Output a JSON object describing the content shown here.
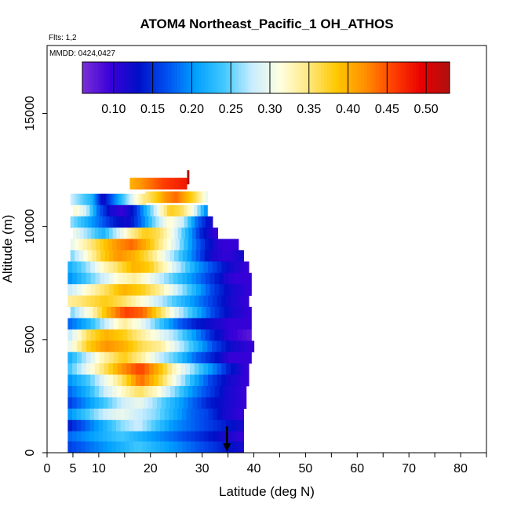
{
  "chart_data": {
    "type": "heatmap",
    "title": "ATOM4 Northeast_Pacific_1 OH_ATHOS",
    "subtitle_flights": "Flts: 1,2",
    "subtitle_dates": "MMDD: 0424,0427",
    "xlabel": "Latitude (deg N)",
    "ylabel": "Altitude (m)",
    "xlim": [
      0,
      85
    ],
    "ylim": [
      0,
      18000
    ],
    "x_ticks": [
      0,
      5,
      10,
      20,
      30,
      40,
      50,
      60,
      70,
      80
    ],
    "x_minor_ticks": [
      15,
      25,
      35,
      45,
      55,
      65,
      75,
      85
    ],
    "y_ticks": [
      0,
      5000,
      10000,
      15000
    ],
    "colorbar": {
      "min": 0.06,
      "max": 0.53,
      "ticks": [
        0.1,
        0.15,
        0.2,
        0.25,
        0.3,
        0.35,
        0.4,
        0.45,
        0.5
      ],
      "tick_labels": [
        "0.10",
        "0.15",
        "0.20",
        "0.25",
        "0.30",
        "0.35",
        "0.40",
        "0.45",
        "0.50"
      ],
      "colors": [
        "#7b2fd8",
        "#3a00d8",
        "#0010c8",
        "#0050f0",
        "#00a0ff",
        "#40c8ff",
        "#c8ecff",
        "#ffffe0",
        "#ffe880",
        "#ffc800",
        "#ff9000",
        "#ff4000",
        "#e80000",
        "#b01010"
      ]
    },
    "layers": [
      {
        "alt": 11200,
        "x0": 4.5,
        "x1": 19,
        "pattern": [
          0.28,
          0.25,
          0.22,
          0.12,
          0.18,
          0.24,
          0.3,
          0.35
        ]
      },
      {
        "alt": 11900,
        "x0": 16,
        "x1": 27,
        "pattern": [
          0.4,
          0.42,
          0.44,
          0.46,
          0.47,
          0.48
        ]
      },
      {
        "alt": 11300,
        "x0": 19,
        "x1": 31,
        "pattern": [
          0.35,
          0.38,
          0.42,
          0.44,
          0.4,
          0.36,
          0.3
        ]
      },
      {
        "alt": 10700,
        "x0": 5,
        "x1": 31,
        "pattern": [
          0.32,
          0.28,
          0.18,
          0.12,
          0.1,
          0.14,
          0.22,
          0.3,
          0.38,
          0.36,
          0.3,
          0.2
        ]
      },
      {
        "alt": 10200,
        "x0": 4.5,
        "x1": 32,
        "pattern": [
          0.26,
          0.22,
          0.18,
          0.14,
          0.12,
          0.18,
          0.26,
          0.32,
          0.28,
          0.18,
          0.12
        ]
      },
      {
        "alt": 9700,
        "x0": 5,
        "x1": 33,
        "pattern": [
          0.3,
          0.26,
          0.22,
          0.28,
          0.34,
          0.38,
          0.36,
          0.3,
          0.22,
          0.14,
          0.1
        ]
      },
      {
        "alt": 9200,
        "x0": 4.5,
        "x1": 37,
        "pattern": [
          0.3,
          0.34,
          0.38,
          0.42,
          0.44,
          0.4,
          0.34,
          0.28,
          0.2,
          0.14,
          0.1,
          0.1
        ]
      },
      {
        "alt": 8700,
        "x0": 4.5,
        "x1": 38,
        "pattern": [
          0.26,
          0.32,
          0.38,
          0.42,
          0.4,
          0.36,
          0.3,
          0.24,
          0.18,
          0.12,
          0.1,
          0.12
        ]
      },
      {
        "alt": 8200,
        "x0": 4,
        "x1": 39,
        "pattern": [
          0.22,
          0.26,
          0.32,
          0.36,
          0.4,
          0.38,
          0.32,
          0.26,
          0.2,
          0.16,
          0.12,
          0.1
        ]
      },
      {
        "alt": 7700,
        "x0": 4,
        "x1": 39.5,
        "pattern": [
          0.2,
          0.24,
          0.28,
          0.32,
          0.34,
          0.3,
          0.26,
          0.22,
          0.18,
          0.14,
          0.1,
          0.1
        ]
      },
      {
        "alt": 7200,
        "x0": 4,
        "x1": 39.5,
        "pattern": [
          0.28,
          0.32,
          0.36,
          0.4,
          0.38,
          0.34,
          0.28,
          0.22,
          0.16,
          0.12,
          0.1
        ]
      },
      {
        "alt": 6700,
        "x0": 4,
        "x1": 39,
        "pattern": [
          0.34,
          0.36,
          0.38,
          0.36,
          0.32,
          0.28,
          0.24,
          0.2,
          0.16,
          0.12,
          0.1
        ]
      },
      {
        "alt": 6200,
        "x0": 4.5,
        "x1": 39.5,
        "pattern": [
          0.26,
          0.32,
          0.4,
          0.46,
          0.44,
          0.36,
          0.28,
          0.22,
          0.16,
          0.12,
          0.1
        ]
      },
      {
        "alt": 5700,
        "x0": 4,
        "x1": 39.5,
        "pattern": [
          0.18,
          0.22,
          0.28,
          0.34,
          0.3,
          0.24,
          0.18,
          0.14,
          0.12,
          0.1,
          0.1
        ]
      },
      {
        "alt": 5200,
        "x0": 4,
        "x1": 39.5,
        "pattern": [
          0.28,
          0.36,
          0.4,
          0.38,
          0.34,
          0.3,
          0.26,
          0.2,
          0.14,
          0.1,
          0.08
        ]
      },
      {
        "alt": 4700,
        "x0": 4,
        "x1": 40,
        "pattern": [
          0.3,
          0.38,
          0.42,
          0.4,
          0.36,
          0.34,
          0.28,
          0.22,
          0.16,
          0.12,
          0.1
        ]
      },
      {
        "alt": 4200,
        "x0": 4,
        "x1": 39.5,
        "pattern": [
          0.22,
          0.28,
          0.34,
          0.38,
          0.34,
          0.28,
          0.24,
          0.18,
          0.14,
          0.1,
          0.1
        ]
      },
      {
        "alt": 3700,
        "x0": 4,
        "x1": 39,
        "pattern": [
          0.24,
          0.3,
          0.36,
          0.42,
          0.46,
          0.4,
          0.32,
          0.26,
          0.2,
          0.14,
          0.1
        ]
      },
      {
        "alt": 3200,
        "x0": 4,
        "x1": 39,
        "pattern": [
          0.2,
          0.24,
          0.3,
          0.36,
          0.44,
          0.38,
          0.3,
          0.22,
          0.16,
          0.12,
          0.1
        ]
      },
      {
        "alt": 2700,
        "x0": 4,
        "x1": 38.5,
        "pattern": [
          0.18,
          0.22,
          0.28,
          0.32,
          0.36,
          0.32,
          0.26,
          0.2,
          0.16,
          0.12,
          0.1
        ]
      },
      {
        "alt": 2200,
        "x0": 4,
        "x1": 38.5,
        "pattern": [
          0.16,
          0.2,
          0.24,
          0.28,
          0.3,
          0.26,
          0.22,
          0.18,
          0.14,
          0.12,
          0.1
        ]
      },
      {
        "alt": 1700,
        "x0": 4,
        "x1": 38,
        "pattern": [
          0.2,
          0.24,
          0.28,
          0.3,
          0.28,
          0.26,
          0.22,
          0.18,
          0.16,
          0.12,
          0.1
        ]
      },
      {
        "alt": 1200,
        "x0": 4,
        "x1": 38,
        "pattern": [
          0.14,
          0.18,
          0.22,
          0.26,
          0.28,
          0.24,
          0.2,
          0.18,
          0.16,
          0.14,
          0.12
        ]
      },
      {
        "alt": 700,
        "x0": 4,
        "x1": 38,
        "pattern": [
          0.18,
          0.2,
          0.22,
          0.24,
          0.22,
          0.2,
          0.18,
          0.16,
          0.14,
          0.12,
          0.1
        ]
      },
      {
        "alt": 250,
        "x0": 4,
        "x1": 38,
        "pattern": [
          0.16,
          0.18,
          0.2,
          0.22,
          0.24,
          0.22,
          0.2,
          0.18,
          0.16,
          0.14,
          0.12
        ]
      }
    ],
    "markers": [
      {
        "x": 27.3,
        "y": 12000,
        "color": "#b01010",
        "shape": "tick"
      },
      {
        "x": 34.8,
        "y": 400,
        "color": "#000000",
        "shape": "arrow-down"
      }
    ]
  }
}
